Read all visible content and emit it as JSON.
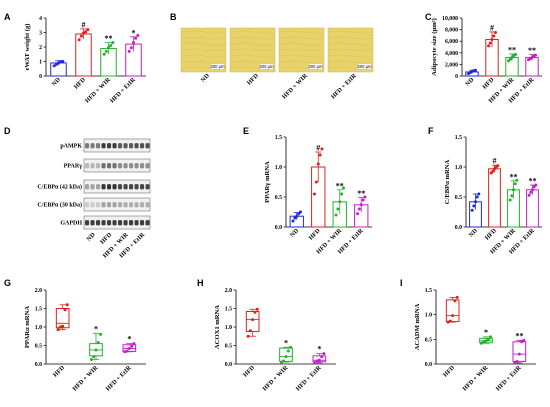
{
  "figure": {
    "colors": {
      "ND": "#1f2ad6",
      "HFD": "#e0201c",
      "HFD + WIR": "#24b02c",
      "HFD + EtIR": "#c21fc9"
    }
  },
  "chart_data": [
    {
      "panel": "A",
      "type": "bar",
      "ylabel": "eWAT weight (g)",
      "categories": [
        "ND",
        "HFD",
        "HFD + WIR",
        "HFD + EtIR"
      ],
      "values": [
        0.9,
        2.9,
        1.9,
        2.2
      ],
      "errors": [
        0.15,
        0.35,
        0.4,
        0.5
      ],
      "points": [
        [
          0.7,
          0.8,
          0.9,
          1.0,
          1.0
        ],
        [
          2.5,
          2.75,
          2.95,
          3.05,
          3.2
        ],
        [
          1.5,
          1.7,
          1.95,
          2.1,
          2.3
        ],
        [
          1.7,
          1.95,
          2.3,
          2.6,
          2.8
        ]
      ],
      "significance": [
        "",
        "#",
        "**",
        "*"
      ],
      "ylim": [
        0,
        4
      ],
      "yticks": [
        0,
        1,
        2,
        3,
        4
      ],
      "grid": false
    },
    {
      "panel": "C",
      "type": "bar",
      "ylabel": "Adipocyte size (μm²)",
      "categories": [
        "ND",
        "HFD",
        "HFD + WIR",
        "HFD + EtIR"
      ],
      "values": [
        700,
        6300,
        3200,
        3200
      ],
      "errors": [
        300,
        1300,
        600,
        500
      ],
      "points": [
        [
          400,
          600,
          800,
          900,
          1000
        ],
        [
          5200,
          5700,
          6300,
          6900,
          7500
        ],
        [
          2600,
          2900,
          3200,
          3500,
          3700
        ],
        [
          2800,
          3000,
          3200,
          3400,
          3600
        ]
      ],
      "significance": [
        "",
        "#",
        "**",
        "**"
      ],
      "ylim": [
        0,
        10000
      ],
      "yticks": [
        0,
        2000,
        4000,
        6000,
        8000,
        10000
      ],
      "ytick_labels": [
        "0",
        "2,000",
        "4,000",
        "6,000",
        "8,000",
        "10,000"
      ],
      "grid": false
    },
    {
      "panel": "E",
      "type": "bar",
      "ylabel": "PPARγ mRNA",
      "categories": [
        "ND",
        "HFD",
        "HFD + WIR",
        "HFD + EtIR"
      ],
      "values": [
        0.18,
        1.0,
        0.42,
        0.37
      ],
      "errors": [
        0.06,
        0.25,
        0.2,
        0.12
      ],
      "points": [
        [
          0.1,
          0.15,
          0.18,
          0.22,
          0.25
        ],
        [
          0.55,
          0.75,
          1.05,
          1.2,
          1.3
        ],
        [
          0.2,
          0.3,
          0.42,
          0.55,
          0.65
        ],
        [
          0.22,
          0.3,
          0.37,
          0.45,
          0.5
        ]
      ],
      "significance": [
        "",
        "#",
        "**",
        "**"
      ],
      "ylim": [
        0,
        1.5
      ],
      "yticks": [
        0,
        0.5,
        1.0,
        1.5
      ],
      "ytick_labels": [
        "0.0",
        "0.5",
        "1.0",
        "1.5"
      ],
      "grid": false
    },
    {
      "panel": "F",
      "type": "bar",
      "ylabel": "C/EBPα mRNA",
      "categories": [
        "ND",
        "HFD",
        "HFD + WIR",
        "HFD + EtIR"
      ],
      "values": [
        0.42,
        0.97,
        0.62,
        0.62
      ],
      "errors": [
        0.13,
        0.06,
        0.15,
        0.08
      ],
      "points": [
        [
          0.28,
          0.35,
          0.42,
          0.5,
          0.55
        ],
        [
          0.9,
          0.93,
          0.97,
          1.0,
          1.02
        ],
        [
          0.45,
          0.52,
          0.62,
          0.72,
          0.78
        ],
        [
          0.53,
          0.58,
          0.62,
          0.67,
          0.7
        ]
      ],
      "significance": [
        "",
        "#",
        "**",
        "**"
      ],
      "ylim": [
        0,
        1.5
      ],
      "yticks": [
        0,
        0.5,
        1.0,
        1.5
      ],
      "ytick_labels": [
        "0.0",
        "0.5",
        "1.0",
        "1.5"
      ],
      "grid": false
    },
    {
      "panel": "G",
      "type": "box",
      "ylabel": "PPARα mRNA",
      "categories": [
        "HFD",
        "HFD + WIR",
        "HFD + EtIR"
      ],
      "boxes": [
        {
          "min": 0.93,
          "q1": 0.98,
          "median": 1.1,
          "q3": 1.5,
          "max": 1.6
        },
        {
          "min": 0.12,
          "q1": 0.22,
          "median": 0.38,
          "q3": 0.55,
          "max": 0.83
        },
        {
          "min": 0.33,
          "q1": 0.34,
          "median": 0.42,
          "q3": 0.52,
          "max": 0.55
        }
      ],
      "points": [
        [
          0.93,
          1.0,
          1.02,
          1.47,
          1.6
        ],
        [
          0.12,
          0.2,
          0.38,
          0.58,
          0.8
        ],
        [
          0.33,
          0.35,
          0.42,
          0.48,
          0.55
        ]
      ],
      "significance": [
        "",
        "*",
        "*"
      ],
      "ylim": [
        0,
        2.0
      ],
      "yticks": [
        0,
        0.5,
        1.0,
        1.5,
        2.0
      ],
      "ytick_labels": [
        "0.0",
        "0.5",
        "1.0",
        "1.5",
        "2.0"
      ],
      "grid": false
    },
    {
      "panel": "H",
      "type": "box",
      "ylabel": "ACOX1 mRNA",
      "categories": [
        "HFD",
        "HFD + WIR",
        "HFD + EtIR"
      ],
      "boxes": [
        {
          "min": 0.75,
          "q1": 0.88,
          "median": 1.2,
          "q3": 1.42,
          "max": 1.48
        },
        {
          "min": 0.05,
          "q1": 0.07,
          "median": 0.2,
          "q3": 0.43,
          "max": 0.45
        },
        {
          "min": 0.03,
          "q1": 0.06,
          "median": 0.1,
          "q3": 0.22,
          "max": 0.28
        }
      ],
      "points": [
        [
          0.75,
          0.9,
          1.2,
          1.4,
          1.48
        ],
        [
          0.05,
          0.08,
          0.2,
          0.35,
          0.45
        ],
        [
          0.03,
          0.08,
          0.1,
          0.2,
          0.28
        ]
      ],
      "significance": [
        "",
        "*",
        "*"
      ],
      "ylim": [
        0,
        2.0
      ],
      "yticks": [
        0,
        0.5,
        1.0,
        1.5,
        2.0
      ],
      "ytick_labels": [
        "0.0",
        "0.5",
        "1.0",
        "1.5",
        "2.0"
      ],
      "grid": false
    },
    {
      "panel": "I",
      "type": "box",
      "ylabel": "ACADM mRNA",
      "categories": [
        "HFD",
        "HFD + WIR",
        "HFD + EtIR"
      ],
      "boxes": [
        {
          "min": 0.85,
          "q1": 0.86,
          "median": 0.98,
          "q3": 1.3,
          "max": 1.35
        },
        {
          "min": 0.42,
          "q1": 0.43,
          "median": 0.47,
          "q3": 0.52,
          "max": 0.55
        },
        {
          "min": 0.02,
          "q1": 0.05,
          "median": 0.2,
          "q3": 0.45,
          "max": 0.48
        }
      ],
      "points": [
        [
          0.85,
          0.87,
          0.98,
          1.28,
          1.35
        ],
        [
          0.42,
          0.45,
          0.47,
          0.5,
          0.55
        ],
        [
          0.02,
          0.05,
          0.2,
          0.45,
          0.48
        ]
      ],
      "significance": [
        "",
        "*",
        "**"
      ],
      "ylim": [
        0,
        1.5
      ],
      "yticks": [
        0,
        0.5,
        1.0,
        1.5
      ],
      "ytick_labels": [
        "0.0",
        "0.5",
        "1.0",
        "1.5"
      ],
      "grid": false
    }
  ],
  "histology": {
    "letter": "B",
    "groups": [
      "ND",
      "HFD",
      "HFD + WIR",
      "HFD + EtIR"
    ],
    "scale_bar": "200 μm",
    "color": "#e8d36a"
  },
  "blot": {
    "letter": "D",
    "rows": [
      "pAMPK",
      "PPARγ",
      "C/EBPα (42 kDa)",
      "C/EBPα (30 kDa)",
      "GAPDH"
    ],
    "lanes": [
      "ND",
      "HFD",
      "HFD + WIR",
      "HFD + EtIR"
    ]
  }
}
